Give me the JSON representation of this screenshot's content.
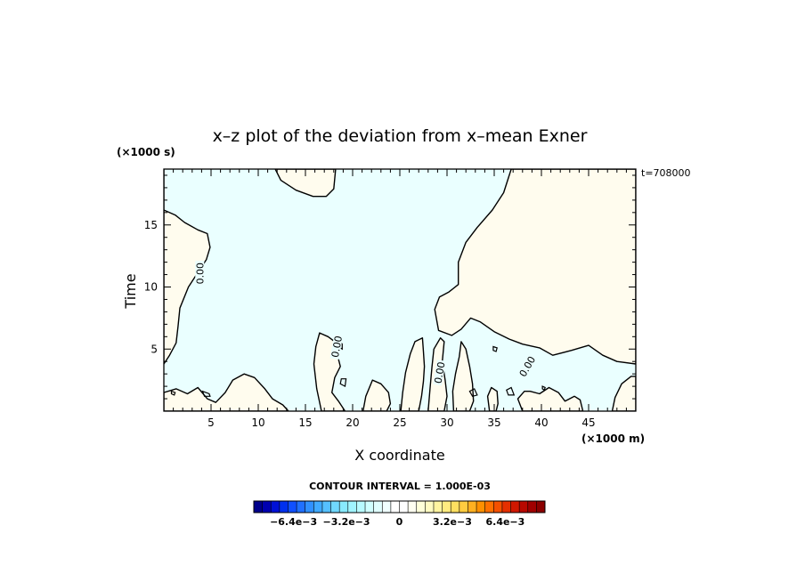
{
  "chart_data": {
    "type": "contour",
    "title": "x–z plot of the deviation from x–mean Exner",
    "xlabel": "X coordinate",
    "ylabel": "Time",
    "x_unit": "(×1000 m)",
    "y_unit": "(×1000 s)",
    "time_label": "t=708000",
    "xlim": [
      0,
      50
    ],
    "ylim": [
      0,
      19.5
    ],
    "x_ticks": [
      5,
      10,
      15,
      20,
      25,
      30,
      35,
      40,
      45
    ],
    "y_ticks": [
      5,
      10,
      15
    ],
    "contour_label": "0.00",
    "contour_interval": "CONTOUR INTERVAL = 1.000E-03",
    "colors": {
      "negative": "#eaffff",
      "positive": "#fffcee",
      "line": "#000000"
    },
    "colorbar": {
      "tick_labels": [
        "−6.4e−3",
        "−3.2e−3",
        "0",
        "3.2e−3",
        "6.4e−3"
      ],
      "tick_values": [
        -0.0064,
        -0.0032,
        0,
        0.0032,
        0.0064
      ],
      "min": -0.0088,
      "max": 0.0088,
      "colors": [
        "#00008b",
        "#0000b0",
        "#0010d6",
        "#0030ee",
        "#1050ff",
        "#2070ff",
        "#3090ff",
        "#40aaff",
        "#55c0ff",
        "#70d8ff",
        "#88eaff",
        "#a0f4ff",
        "#b8faff",
        "#d0ffff",
        "#e0ffff",
        "#f0ffff",
        "#ffffff",
        "#ffffff",
        "#fffff0",
        "#ffffd8",
        "#fffac0",
        "#fff4a0",
        "#ffec80",
        "#ffdf60",
        "#ffcc40",
        "#ffb020",
        "#ff9000",
        "#ff7000",
        "#f55000",
        "#e53000",
        "#d01800",
        "#b80800",
        "#a00000",
        "#8b0000"
      ]
    },
    "positive_regions": [
      [
        [
          0,
          19.5
        ],
        [
          0,
          16.2
        ],
        [
          1.2,
          15.8
        ],
        [
          2.2,
          15.2
        ],
        [
          3.6,
          14.6
        ],
        [
          4.6,
          14.3
        ],
        [
          4.9,
          13.2
        ],
        [
          4.5,
          12.2
        ],
        [
          3.8,
          11.4
        ],
        [
          2.6,
          10.0
        ],
        [
          1.7,
          8.3
        ],
        [
          1.5,
          6.8
        ],
        [
          1.3,
          5.5
        ],
        [
          0.6,
          4.5
        ],
        [
          0,
          3.8
        ]
      ],
      [
        [
          11.8,
          19.5
        ],
        [
          12.4,
          18.6
        ],
        [
          14.0,
          17.8
        ],
        [
          15.8,
          17.3
        ],
        [
          17.2,
          17.3
        ],
        [
          18.0,
          17.9
        ],
        [
          18.2,
          19.5
        ]
      ],
      [
        [
          36.8,
          19.5
        ],
        [
          36.0,
          17.6
        ],
        [
          34.8,
          16.2
        ],
        [
          33.2,
          14.8
        ],
        [
          32.0,
          13.6
        ],
        [
          31.2,
          12.0
        ],
        [
          31.2,
          10.2
        ],
        [
          30.2,
          9.6
        ],
        [
          29.2,
          9.2
        ],
        [
          28.7,
          8.2
        ],
        [
          29.1,
          6.5
        ],
        [
          30.5,
          6.1
        ],
        [
          31.5,
          6.6
        ],
        [
          32.5,
          7.5
        ],
        [
          33.5,
          7.2
        ],
        [
          35.0,
          6.4
        ],
        [
          36.6,
          5.8
        ],
        [
          38.0,
          5.4
        ],
        [
          39.8,
          5.1
        ],
        [
          41.2,
          4.5
        ],
        [
          43.2,
          4.9
        ],
        [
          45.0,
          5.3
        ],
        [
          46.5,
          4.5
        ],
        [
          48.0,
          4.0
        ],
        [
          50,
          3.8
        ],
        [
          50,
          19.5
        ]
      ],
      [
        [
          0,
          0
        ],
        [
          0,
          1.5
        ],
        [
          1.3,
          1.8
        ],
        [
          2.5,
          1.4
        ],
        [
          3.6,
          1.9
        ],
        [
          4.6,
          1.0
        ],
        [
          5.5,
          0.7
        ],
        [
          6.5,
          1.5
        ],
        [
          7.3,
          2.5
        ],
        [
          8.5,
          3.0
        ],
        [
          9.6,
          2.7
        ],
        [
          10.7,
          1.8
        ],
        [
          11.5,
          1.0
        ],
        [
          12.6,
          0.5
        ],
        [
          13.2,
          0.0
        ]
      ],
      [
        [
          16.7,
          0.0
        ],
        [
          16.2,
          1.8
        ],
        [
          15.9,
          3.8
        ],
        [
          16.1,
          5.2
        ],
        [
          16.5,
          6.3
        ],
        [
          17.4,
          6.0
        ],
        [
          18.1,
          5.6
        ],
        [
          18.4,
          4.5
        ],
        [
          18.7,
          3.6
        ],
        [
          18.1,
          2.7
        ],
        [
          17.8,
          1.5
        ],
        [
          18.5,
          0.8
        ],
        [
          19.2,
          0.0
        ]
      ],
      [
        [
          21.1,
          0.0
        ],
        [
          21.4,
          1.2
        ],
        [
          22.1,
          2.5
        ],
        [
          23.0,
          2.2
        ],
        [
          23.8,
          1.5
        ],
        [
          24.0,
          0.6
        ],
        [
          23.6,
          0.0
        ]
      ],
      [
        [
          25.1,
          0.0
        ],
        [
          25.3,
          1.5
        ],
        [
          25.6,
          3.1
        ],
        [
          26.1,
          4.6
        ],
        [
          26.6,
          5.6
        ],
        [
          27.4,
          5.9
        ],
        [
          27.5,
          4.8
        ],
        [
          27.6,
          3.6
        ],
        [
          27.5,
          2.4
        ],
        [
          27.3,
          1.2
        ],
        [
          27.0,
          0.0
        ]
      ],
      [
        [
          28.0,
          0.0
        ],
        [
          28.2,
          1.8
        ],
        [
          28.4,
          3.5
        ],
        [
          28.6,
          5.0
        ],
        [
          29.3,
          5.9
        ],
        [
          29.7,
          5.6
        ],
        [
          29.5,
          4.0
        ],
        [
          29.8,
          2.5
        ],
        [
          30.0,
          1.2
        ],
        [
          29.7,
          0.0
        ]
      ],
      [
        [
          30.7,
          0.0
        ],
        [
          30.6,
          1.6
        ],
        [
          30.9,
          3.0
        ],
        [
          31.3,
          4.4
        ],
        [
          31.5,
          5.6
        ],
        [
          32.0,
          5.0
        ],
        [
          32.4,
          3.6
        ],
        [
          32.7,
          2.2
        ],
        [
          32.8,
          0.8
        ],
        [
          32.4,
          0.0
        ]
      ],
      [
        [
          34.5,
          0.0
        ],
        [
          34.3,
          1.2
        ],
        [
          34.7,
          1.9
        ],
        [
          35.3,
          1.6
        ],
        [
          35.4,
          0.6
        ],
        [
          35.2,
          0.0
        ]
      ],
      [
        [
          38.0,
          0.0
        ],
        [
          37.5,
          1.0
        ],
        [
          38.2,
          1.6
        ],
        [
          38.8,
          1.6
        ],
        [
          39.8,
          1.4
        ],
        [
          40.8,
          1.9
        ],
        [
          41.8,
          1.5
        ],
        [
          42.5,
          0.8
        ],
        [
          43.5,
          1.2
        ],
        [
          44.1,
          0.9
        ],
        [
          44.4,
          0.0
        ]
      ],
      [
        [
          47.5,
          0.0
        ],
        [
          47.8,
          1.1
        ],
        [
          48.5,
          2.2
        ],
        [
          49.5,
          2.8
        ],
        [
          50,
          2.8
        ],
        [
          50,
          0
        ]
      ]
    ],
    "small_loops": [
      [
        [
          4.1,
          1.6
        ],
        [
          4.8,
          1.4
        ],
        [
          4.9,
          1.2
        ],
        [
          4.3,
          1.2
        ]
      ],
      [
        [
          0.8,
          1.6
        ],
        [
          1.2,
          1.5
        ],
        [
          1.1,
          1.3
        ],
        [
          0.8,
          1.4
        ]
      ],
      [
        [
          18.6,
          5.7
        ],
        [
          18.9,
          5.4
        ],
        [
          18.9,
          5.0
        ],
        [
          18.5,
          5.2
        ]
      ],
      [
        [
          18.8,
          2.6
        ],
        [
          19.3,
          2.6
        ],
        [
          19.2,
          2.0
        ],
        [
          18.7,
          2.2
        ]
      ],
      [
        [
          32.4,
          1.6
        ],
        [
          32.9,
          1.8
        ],
        [
          33.2,
          1.3
        ],
        [
          32.7,
          1.2
        ]
      ],
      [
        [
          34.9,
          5.2
        ],
        [
          35.3,
          5.1
        ],
        [
          35.2,
          4.8
        ],
        [
          34.9,
          4.9
        ]
      ],
      [
        [
          36.3,
          1.7
        ],
        [
          36.8,
          1.9
        ],
        [
          37.1,
          1.3
        ],
        [
          36.5,
          1.3
        ]
      ],
      [
        [
          40.1,
          2.0
        ],
        [
          40.4,
          1.9
        ],
        [
          40.3,
          1.7
        ],
        [
          40.1,
          1.8
        ]
      ]
    ]
  }
}
